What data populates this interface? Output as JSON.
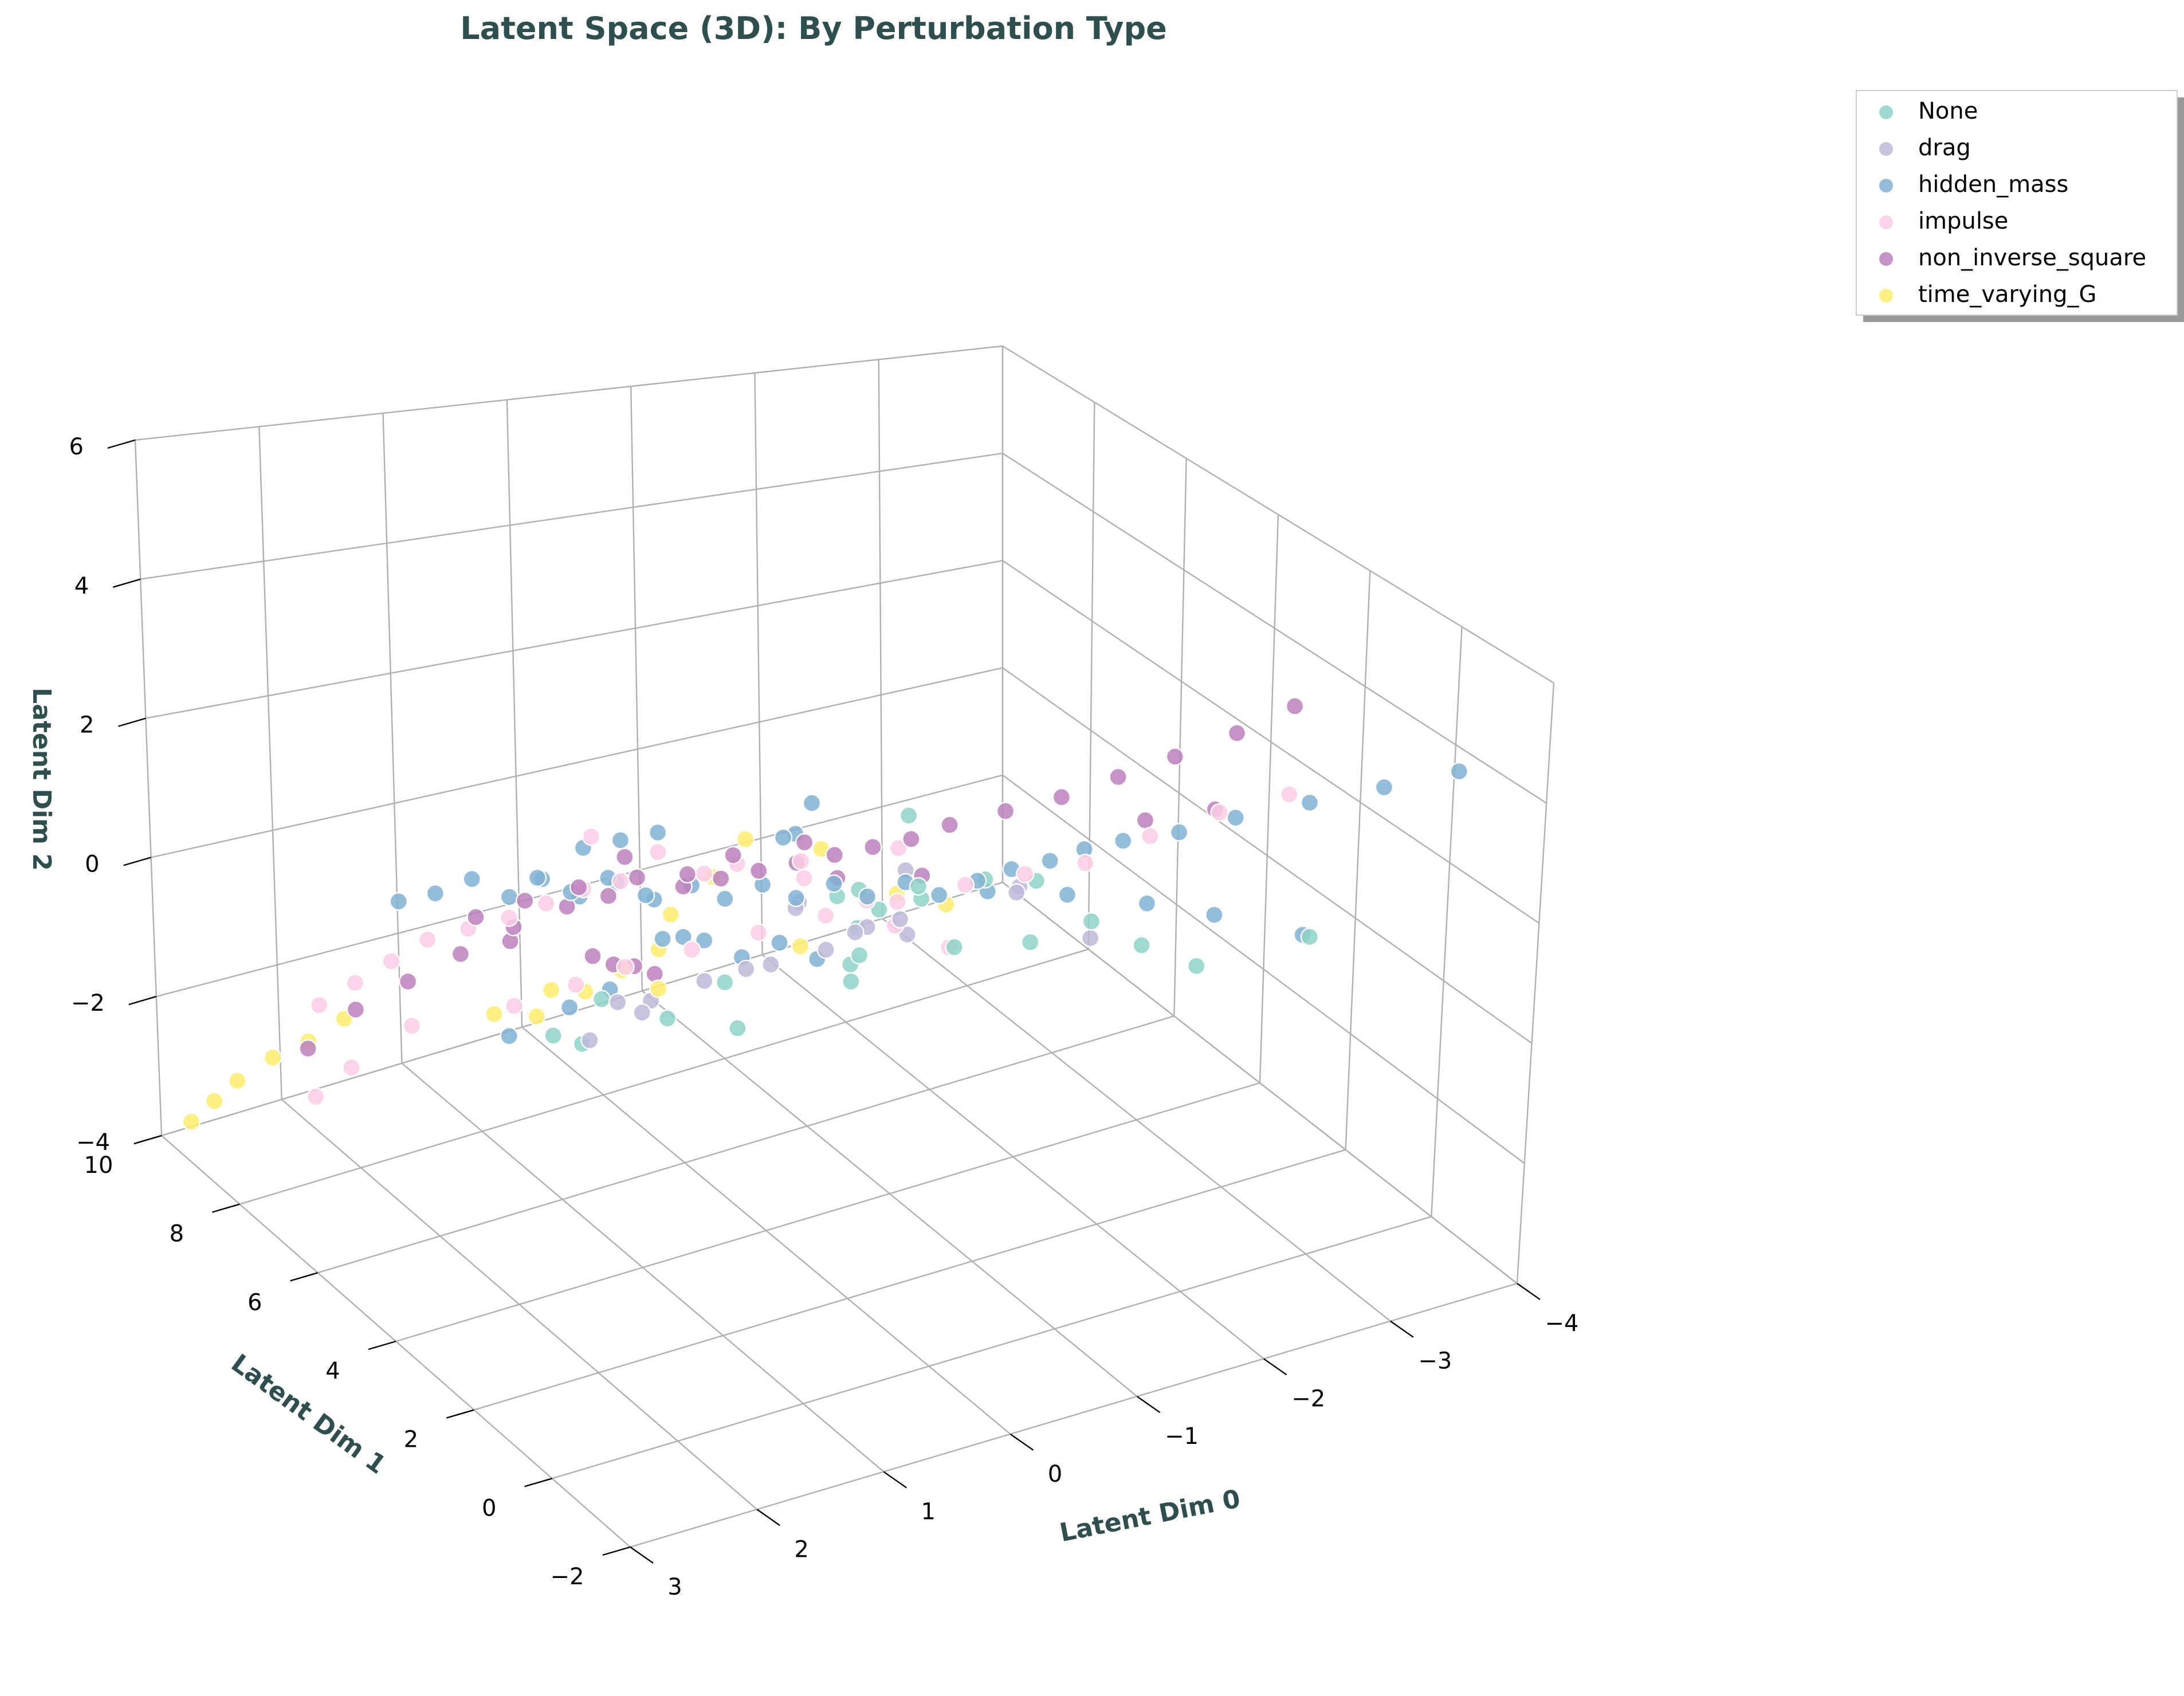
{
  "chart_data": {
    "type": "scatter3d",
    "title": "Latent Space (3D): By Perturbation Type",
    "xlabel": "Latent Dim 0",
    "ylabel": "Latent Dim 1",
    "zlabel": "Latent Dim 2",
    "xlim": [
      -4,
      3
    ],
    "ylim": [
      -2,
      10
    ],
    "zlim": [
      -4,
      6
    ],
    "xticks": [
      "−4",
      "−3",
      "−2",
      "−1",
      "0",
      "1",
      "2",
      "3"
    ],
    "yticks": [
      "−2",
      "0",
      "2",
      "4",
      "6",
      "8",
      "10"
    ],
    "zticks": [
      "−4",
      "−2",
      "0",
      "2",
      "4",
      "6"
    ],
    "legend_position": "top-right",
    "grid": true,
    "series": [
      {
        "name": "None",
        "color": "#8dd3c7",
        "points": [
          [
            -1.3,
            4.2,
            0.6
          ],
          [
            -1.6,
            3.6,
            1.1
          ],
          [
            -1.1,
            4.6,
            0.3
          ],
          [
            -2.0,
            2.3,
            0.9
          ],
          [
            -1.8,
            3.0,
            1.3
          ],
          [
            -1.5,
            4.0,
            -0.2
          ],
          [
            -0.9,
            5.0,
            0.4
          ],
          [
            -1.2,
            5.4,
            -0.5
          ],
          [
            -2.3,
            2.0,
            0.5
          ],
          [
            -2.6,
            1.6,
            0.2
          ],
          [
            -0.4,
            3.0,
            0.8
          ],
          [
            -1.0,
            3.4,
            1.4
          ],
          [
            -0.6,
            3.8,
            0.1
          ],
          [
            -0.2,
            2.6,
            0.7
          ],
          [
            0.1,
            4.4,
            -0.9
          ],
          [
            0.4,
            6.8,
            -1.6
          ],
          [
            0.6,
            7.4,
            -2.4
          ],
          [
            0.3,
            7.6,
            -2.8
          ],
          [
            0.0,
            6.4,
            -1.9
          ],
          [
            -0.3,
            5.9,
            -1.2
          ],
          [
            -3.1,
            0.5,
            1.0
          ],
          [
            -1.4,
            4.8,
            1.6
          ],
          [
            -0.8,
            4.2,
            1.0
          ],
          [
            -1.9,
            3.4,
            0.0
          ]
        ]
      },
      {
        "name": "drag",
        "color": "#bebada",
        "points": [
          [
            -0.8,
            4.0,
            0.5
          ],
          [
            -0.5,
            3.4,
            0.9
          ],
          [
            -1.2,
            4.4,
            0.2
          ],
          [
            -0.3,
            4.8,
            -0.3
          ],
          [
            0.0,
            5.5,
            -0.8
          ],
          [
            0.2,
            6.2,
            -1.4
          ],
          [
            0.5,
            6.8,
            -2.2
          ],
          [
            -1.7,
            3.1,
            1.2
          ],
          [
            -1.0,
            3.7,
            1.5
          ],
          [
            -0.6,
            5.1,
            0.3
          ],
          [
            0.8,
            4.6,
            -0.4
          ],
          [
            -2.1,
            2.6,
            0.4
          ],
          [
            -1.4,
            2.3,
            1.7
          ],
          [
            0.3,
            3.6,
            0.6
          ],
          [
            -0.1,
            2.9,
            1.1
          ],
          [
            0.6,
            5.8,
            -1.0
          ],
          [
            -0.9,
            5.9,
            -0.2
          ],
          [
            -1.5,
            5.1,
            -0.6
          ]
        ]
      },
      {
        "name": "hidden_mass",
        "color": "#80b1d3",
        "points": [
          [
            0.6,
            5.8,
            0.9
          ],
          [
            0.4,
            5.5,
            0.7
          ],
          [
            0.2,
            5.2,
            1.0
          ],
          [
            0.0,
            5.0,
            0.8
          ],
          [
            -0.2,
            4.7,
            1.1
          ],
          [
            -0.4,
            4.5,
            0.9
          ],
          [
            -0.6,
            4.2,
            1.2
          ],
          [
            -0.8,
            4.0,
            1.0
          ],
          [
            -1.0,
            3.7,
            1.3
          ],
          [
            -1.2,
            3.5,
            1.1
          ],
          [
            0.8,
            6.1,
            0.6
          ],
          [
            1.0,
            6.4,
            0.8
          ],
          [
            1.2,
            6.6,
            0.5
          ],
          [
            1.4,
            6.9,
            0.7
          ],
          [
            1.6,
            7.2,
            0.4
          ],
          [
            0.5,
            5.0,
            0.4
          ],
          [
            0.3,
            4.6,
            0.5
          ],
          [
            0.1,
            4.3,
            0.3
          ],
          [
            -0.1,
            4.0,
            0.6
          ],
          [
            -0.3,
            3.7,
            0.4
          ],
          [
            0.7,
            4.8,
            1.3
          ],
          [
            0.9,
            5.1,
            1.5
          ],
          [
            1.1,
            5.4,
            1.2
          ],
          [
            1.3,
            5.6,
            1.4
          ],
          [
            -0.5,
            5.1,
            1.5
          ],
          [
            -0.7,
            5.4,
            1.3
          ],
          [
            -0.9,
            5.6,
            1.6
          ],
          [
            0.2,
            6.0,
            1.4
          ],
          [
            0.4,
            6.3,
            1.2
          ],
          [
            0.6,
            6.6,
            1.0
          ],
          [
            -1.4,
            3.2,
            1.4
          ],
          [
            -1.6,
            3.0,
            1.6
          ],
          [
            -1.8,
            2.7,
            1.8
          ],
          [
            -2.0,
            2.5,
            2.0
          ],
          [
            -2.2,
            2.2,
            2.2
          ],
          [
            -2.5,
            1.8,
            2.4
          ],
          [
            -2.8,
            1.4,
            2.7
          ],
          [
            -3.2,
            0.9,
            3.0
          ],
          [
            -3.6,
            0.4,
            3.3
          ],
          [
            -4.0,
            -0.1,
            3.6
          ],
          [
            -2.9,
            3.6,
            0.0
          ],
          [
            -3.3,
            3.2,
            -0.2
          ],
          [
            -3.8,
            2.6,
            -0.5
          ],
          [
            -2.4,
            4.0,
            0.2
          ],
          [
            -1.9,
            4.4,
            0.3
          ],
          [
            0.2,
            8.2,
            -2.6
          ],
          [
            0.6,
            8.5,
            -3.0
          ],
          [
            0.0,
            7.8,
            -2.2
          ],
          [
            1.8,
            7.5,
            0.2
          ],
          [
            -0.2,
            6.6,
            -0.8
          ]
        ]
      },
      {
        "name": "impulse",
        "color": "#fccde5",
        "points": [
          [
            1.6,
            6.4,
            0.3
          ],
          [
            1.8,
            6.8,
            0.0
          ],
          [
            2.0,
            7.1,
            -0.4
          ],
          [
            2.2,
            7.4,
            -0.8
          ],
          [
            2.4,
            7.7,
            -1.2
          ],
          [
            1.4,
            6.0,
            0.6
          ],
          [
            1.2,
            5.7,
            0.9
          ],
          [
            1.0,
            5.4,
            1.2
          ],
          [
            0.8,
            5.1,
            1.4
          ],
          [
            -1.8,
            1.9,
            2.2
          ],
          [
            -2.2,
            1.6,
            2.6
          ],
          [
            -2.6,
            1.2,
            3.0
          ],
          [
            -3.0,
            0.8,
            3.3
          ],
          [
            -1.5,
            2.4,
            1.9
          ],
          [
            -1.2,
            2.9,
            1.6
          ],
          [
            -0.8,
            3.3,
            1.3
          ],
          [
            -0.4,
            3.8,
            1.0
          ],
          [
            0.0,
            4.2,
            0.7
          ],
          [
            0.4,
            4.6,
            0.4
          ],
          [
            0.8,
            5.0,
            0.1
          ],
          [
            1.1,
            5.3,
            -0.2
          ],
          [
            1.5,
            5.6,
            -0.5
          ],
          [
            2.1,
            6.3,
            -0.9
          ],
          [
            2.5,
            6.6,
            -1.5
          ],
          [
            2.7,
            6.9,
            -2.0
          ],
          [
            -1.0,
            4.6,
            0.5
          ],
          [
            -0.6,
            4.9,
            0.9
          ],
          [
            -0.2,
            5.3,
            1.1
          ],
          [
            0.3,
            5.7,
            1.3
          ],
          [
            0.7,
            6.1,
            1.5
          ],
          [
            -1.4,
            5.1,
            -0.4
          ],
          [
            -1.7,
            4.7,
            -0.7
          ],
          [
            0.5,
            4.0,
            2.0
          ],
          [
            -0.1,
            3.5,
            2.2
          ],
          [
            -0.7,
            3.0,
            2.4
          ]
        ]
      },
      {
        "name": "non_inverse_square",
        "color": "#bc80bd",
        "points": [
          [
            0.4,
            4.8,
            1.3
          ],
          [
            0.2,
            4.5,
            1.5
          ],
          [
            0.0,
            4.2,
            1.7
          ],
          [
            -0.2,
            3.9,
            1.9
          ],
          [
            -0.4,
            3.6,
            2.1
          ],
          [
            -0.6,
            3.3,
            2.3
          ],
          [
            -0.8,
            3.0,
            2.5
          ],
          [
            -1.0,
            2.7,
            2.8
          ],
          [
            -1.3,
            2.3,
            3.1
          ],
          [
            -1.6,
            1.9,
            3.4
          ],
          [
            -1.9,
            1.5,
            3.8
          ],
          [
            -2.2,
            1.1,
            4.2
          ],
          [
            -2.5,
            0.6,
            4.7
          ],
          [
            -2.8,
            0.2,
            5.2
          ],
          [
            -2.6,
            1.3,
            3.0
          ],
          [
            -2.3,
            2.0,
            2.6
          ],
          [
            0.8,
            5.4,
            1.0
          ],
          [
            1.0,
            5.8,
            0.7
          ],
          [
            1.3,
            6.2,
            0.3
          ],
          [
            1.6,
            6.6,
            -0.2
          ],
          [
            1.9,
            7.0,
            -0.7
          ],
          [
            2.2,
            7.4,
            -1.2
          ],
          [
            2.5,
            7.7,
            -1.8
          ],
          [
            0.6,
            6.4,
            -0.6
          ],
          [
            0.3,
            6.8,
            -1.1
          ],
          [
            0.0,
            7.2,
            -1.5
          ],
          [
            -0.3,
            7.6,
            -2.0
          ],
          [
            1.2,
            4.9,
            1.6
          ],
          [
            0.9,
            4.4,
            1.9
          ],
          [
            0.5,
            5.9,
            1.2
          ],
          [
            -0.1,
            5.1,
            1.4
          ],
          [
            -0.5,
            4.6,
            1.7
          ],
          [
            1.5,
            5.3,
            1.3
          ],
          [
            1.7,
            5.9,
            0.8
          ],
          [
            -1.2,
            3.9,
            1.2
          ],
          [
            0.7,
            3.8,
            2.2
          ],
          [
            -0.9,
            5.0,
            0.7
          ],
          [
            1.1,
            6.9,
            -0.4
          ]
        ]
      },
      {
        "name": "time_varying_G",
        "color": "#ffed6f",
        "points": [
          [
            2.8,
            8.6,
            -2.6
          ],
          [
            2.6,
            8.3,
            -2.2
          ],
          [
            2.4,
            8.0,
            -1.9
          ],
          [
            2.2,
            7.7,
            -1.5
          ],
          [
            2.9,
            8.9,
            -3.0
          ],
          [
            3.0,
            9.2,
            -3.4
          ],
          [
            0.4,
            7.2,
            -1.7
          ],
          [
            0.2,
            6.9,
            -1.3
          ],
          [
            0.0,
            6.6,
            -0.9
          ],
          [
            0.7,
            7.5,
            -2.1
          ],
          [
            -0.3,
            5.4,
            1.4
          ],
          [
            0.1,
            5.0,
            1.2
          ],
          [
            -0.6,
            4.5,
            1.6
          ],
          [
            0.5,
            4.8,
            0.9
          ],
          [
            -1.0,
            3.9,
            1.0
          ],
          [
            0.8,
            4.2,
            0.2
          ],
          [
            -0.2,
            3.8,
            0.6
          ],
          [
            1.2,
            5.6,
            -0.4
          ],
          [
            1.5,
            6.1,
            -0.9
          ],
          [
            -1.5,
            4.2,
            0.4
          ]
        ]
      }
    ]
  }
}
